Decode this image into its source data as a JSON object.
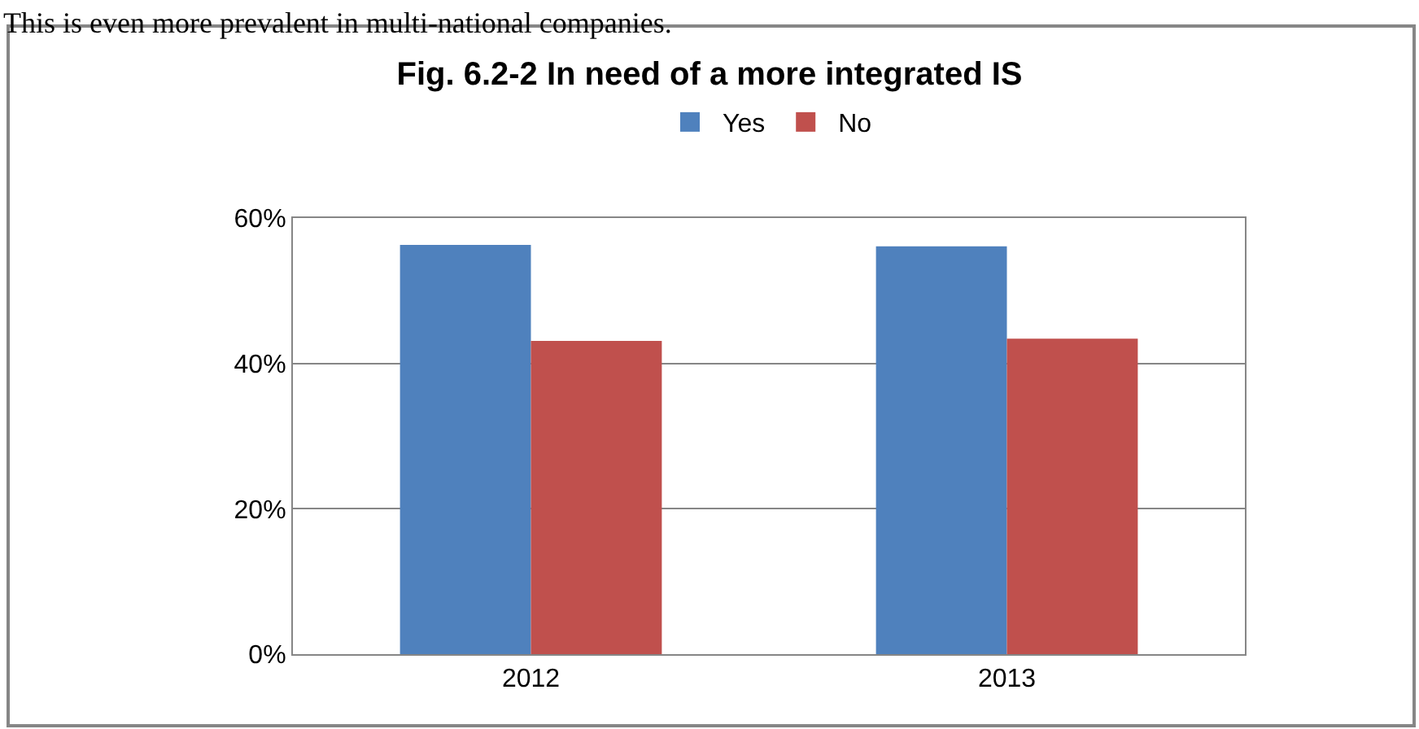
{
  "chart_data": {
    "type": "bar",
    "title": "Fig. 6.2-2 In need of a more integrated IS",
    "annotations": [
      "This is even more prevalent in multi-national companies."
    ],
    "categories": [
      "2012",
      "2013"
    ],
    "series": [
      {
        "name": "Yes",
        "color": "#4f81bd",
        "values": [
          56.3,
          56.1
        ]
      },
      {
        "name": "No",
        "color": "#c0504d",
        "values": [
          43.1,
          43.4
        ]
      }
    ],
    "ylim": [
      0,
      60
    ],
    "yticks": [
      {
        "value": 0,
        "label": "0%"
      },
      {
        "value": 20,
        "label": "20%"
      },
      {
        "value": 40,
        "label": "40%"
      },
      {
        "value": 60,
        "label": "60%"
      }
    ],
    "grid": "y",
    "legend": "top"
  }
}
